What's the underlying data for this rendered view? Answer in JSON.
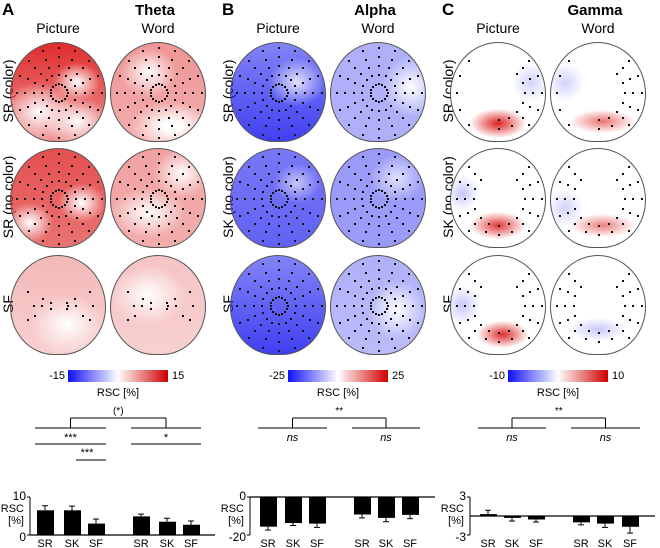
{
  "panels": [
    {
      "letter": "A",
      "band": "Theta",
      "columns": [
        "Picture",
        "Word"
      ],
      "rows": [
        "SR (color)",
        "SR (no color)",
        "SF"
      ],
      "colorbar": {
        "min": "-15",
        "max": "15",
        "label": "RSC [%]"
      }
    },
    {
      "letter": "B",
      "band": "Alpha",
      "columns": [
        "Picture",
        "Word"
      ],
      "rows": [
        "SR (color)",
        "SK (no color)",
        "SF"
      ],
      "colorbar": {
        "min": "-25",
        "max": "25",
        "label": "RSC [%]"
      }
    },
    {
      "letter": "C",
      "band": "Gamma",
      "columns": [
        "Picture",
        "Word"
      ],
      "rows": [
        "SR (color)",
        "SK (no color)",
        "SF"
      ],
      "colorbar": {
        "min": "-10",
        "max": "10",
        "label": "RSC [%]"
      }
    }
  ],
  "colors": {
    "positive": "#d00000",
    "negative": "#1010ff",
    "bar": "#000000"
  },
  "chart_data": [
    {
      "type": "bar",
      "band": "Theta",
      "categories": [
        "SR",
        "SK",
        "SF",
        "SR",
        "SK",
        "SF"
      ],
      "groups": [
        "Picture",
        "Picture",
        "Picture",
        "Word",
        "Word",
        "Word"
      ],
      "values": [
        6.5,
        6.5,
        3.0,
        4.9,
        3.5,
        2.7
      ],
      "errors": [
        1.2,
        1.1,
        1.2,
        0.6,
        0.9,
        1.0
      ],
      "ylabel": "RSC [%]",
      "ylim": [
        0,
        10
      ],
      "yticks": [
        "0",
        "10"
      ],
      "annotations": {
        "main": "(*)",
        "left1": "***",
        "right1": "*",
        "left2": "***"
      }
    },
    {
      "type": "bar",
      "band": "Alpha",
      "categories": [
        "SR",
        "SK",
        "SF",
        "SR",
        "SK",
        "SF"
      ],
      "groups": [
        "Picture",
        "Picture",
        "Picture",
        "Word",
        "Word",
        "Word"
      ],
      "values": [
        -15.6,
        -13.7,
        -14.0,
        -9.2,
        -11.0,
        -9.4
      ],
      "errors": [
        1.8,
        1.3,
        2.0,
        1.8,
        2.0,
        2.0
      ],
      "ylabel": "RSC [%]",
      "ylim": [
        -20,
        0
      ],
      "yticks": [
        "-20",
        "0"
      ],
      "annotations": {
        "main": "**",
        "left1": "ns",
        "right1": "ns"
      }
    },
    {
      "type": "bar",
      "band": "Gamma",
      "categories": [
        "SR",
        "SK",
        "SF",
        "SR",
        "SK",
        "SF"
      ],
      "groups": [
        "Picture",
        "Picture",
        "Picture",
        "Word",
        "Word",
        "Word"
      ],
      "values": [
        0.3,
        -0.3,
        -0.55,
        -1.0,
        -1.2,
        -1.7
      ],
      "errors": [
        0.6,
        0.5,
        0.4,
        0.4,
        0.6,
        1.0
      ],
      "ylabel": "RSC [%]",
      "ylim": [
        -3,
        3
      ],
      "yticks": [
        "-3",
        "3"
      ],
      "annotations": {
        "main": "**",
        "left1": "ns",
        "right1": "ns"
      }
    }
  ]
}
